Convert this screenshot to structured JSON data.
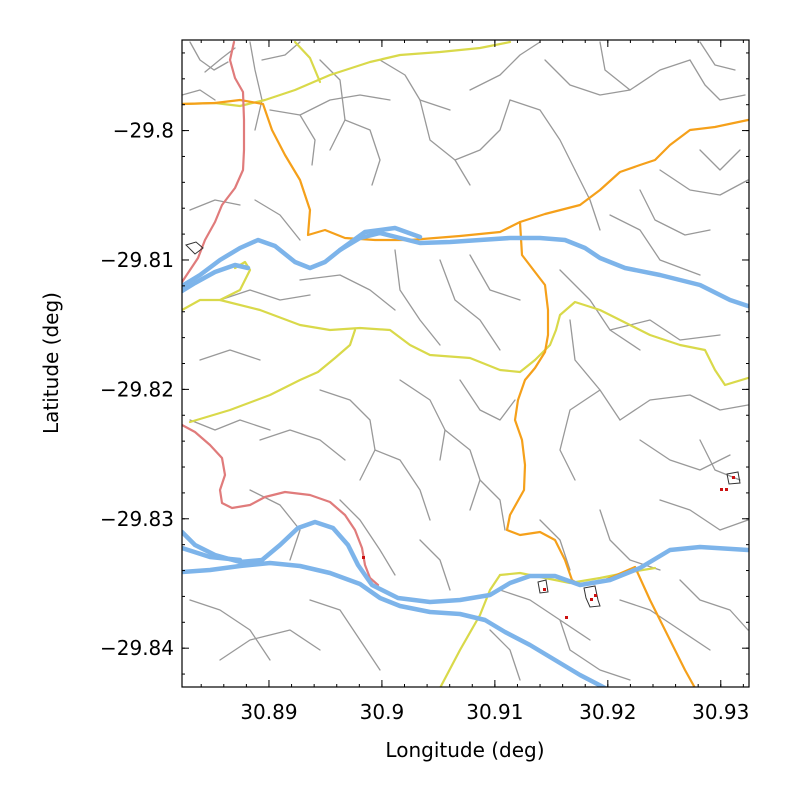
{
  "chart_data": {
    "type": "map",
    "xlabel": "Longitude (deg)",
    "ylabel": "Latitude (deg)",
    "xlim": [
      30.8823,
      30.9325
    ],
    "ylim": [
      -29.843,
      -29.793
    ],
    "x_ticks": [
      {
        "value": 30.89,
        "label": "30.89"
      },
      {
        "value": 30.9,
        "label": "30.9"
      },
      {
        "value": 30.91,
        "label": "30.91"
      },
      {
        "value": 30.92,
        "label": "30.92"
      },
      {
        "value": 30.93,
        "label": "30.93"
      }
    ],
    "y_ticks": [
      {
        "value": -29.8,
        "label": "−29.8"
      },
      {
        "value": -29.81,
        "label": "−29.81"
      },
      {
        "value": -29.82,
        "label": "−29.82"
      },
      {
        "value": -29.83,
        "label": "−29.83"
      },
      {
        "value": -29.84,
        "label": "−29.84"
      }
    ],
    "layers": {
      "road_colors": {
        "motorway": "#7db4ea",
        "trunk": "#e07b7b",
        "primary": "#f5a01a",
        "secondary": "#d9d94a",
        "minor": "#999999"
      },
      "poi_color": "#cc1111"
    },
    "grid": false,
    "legend": "none"
  }
}
